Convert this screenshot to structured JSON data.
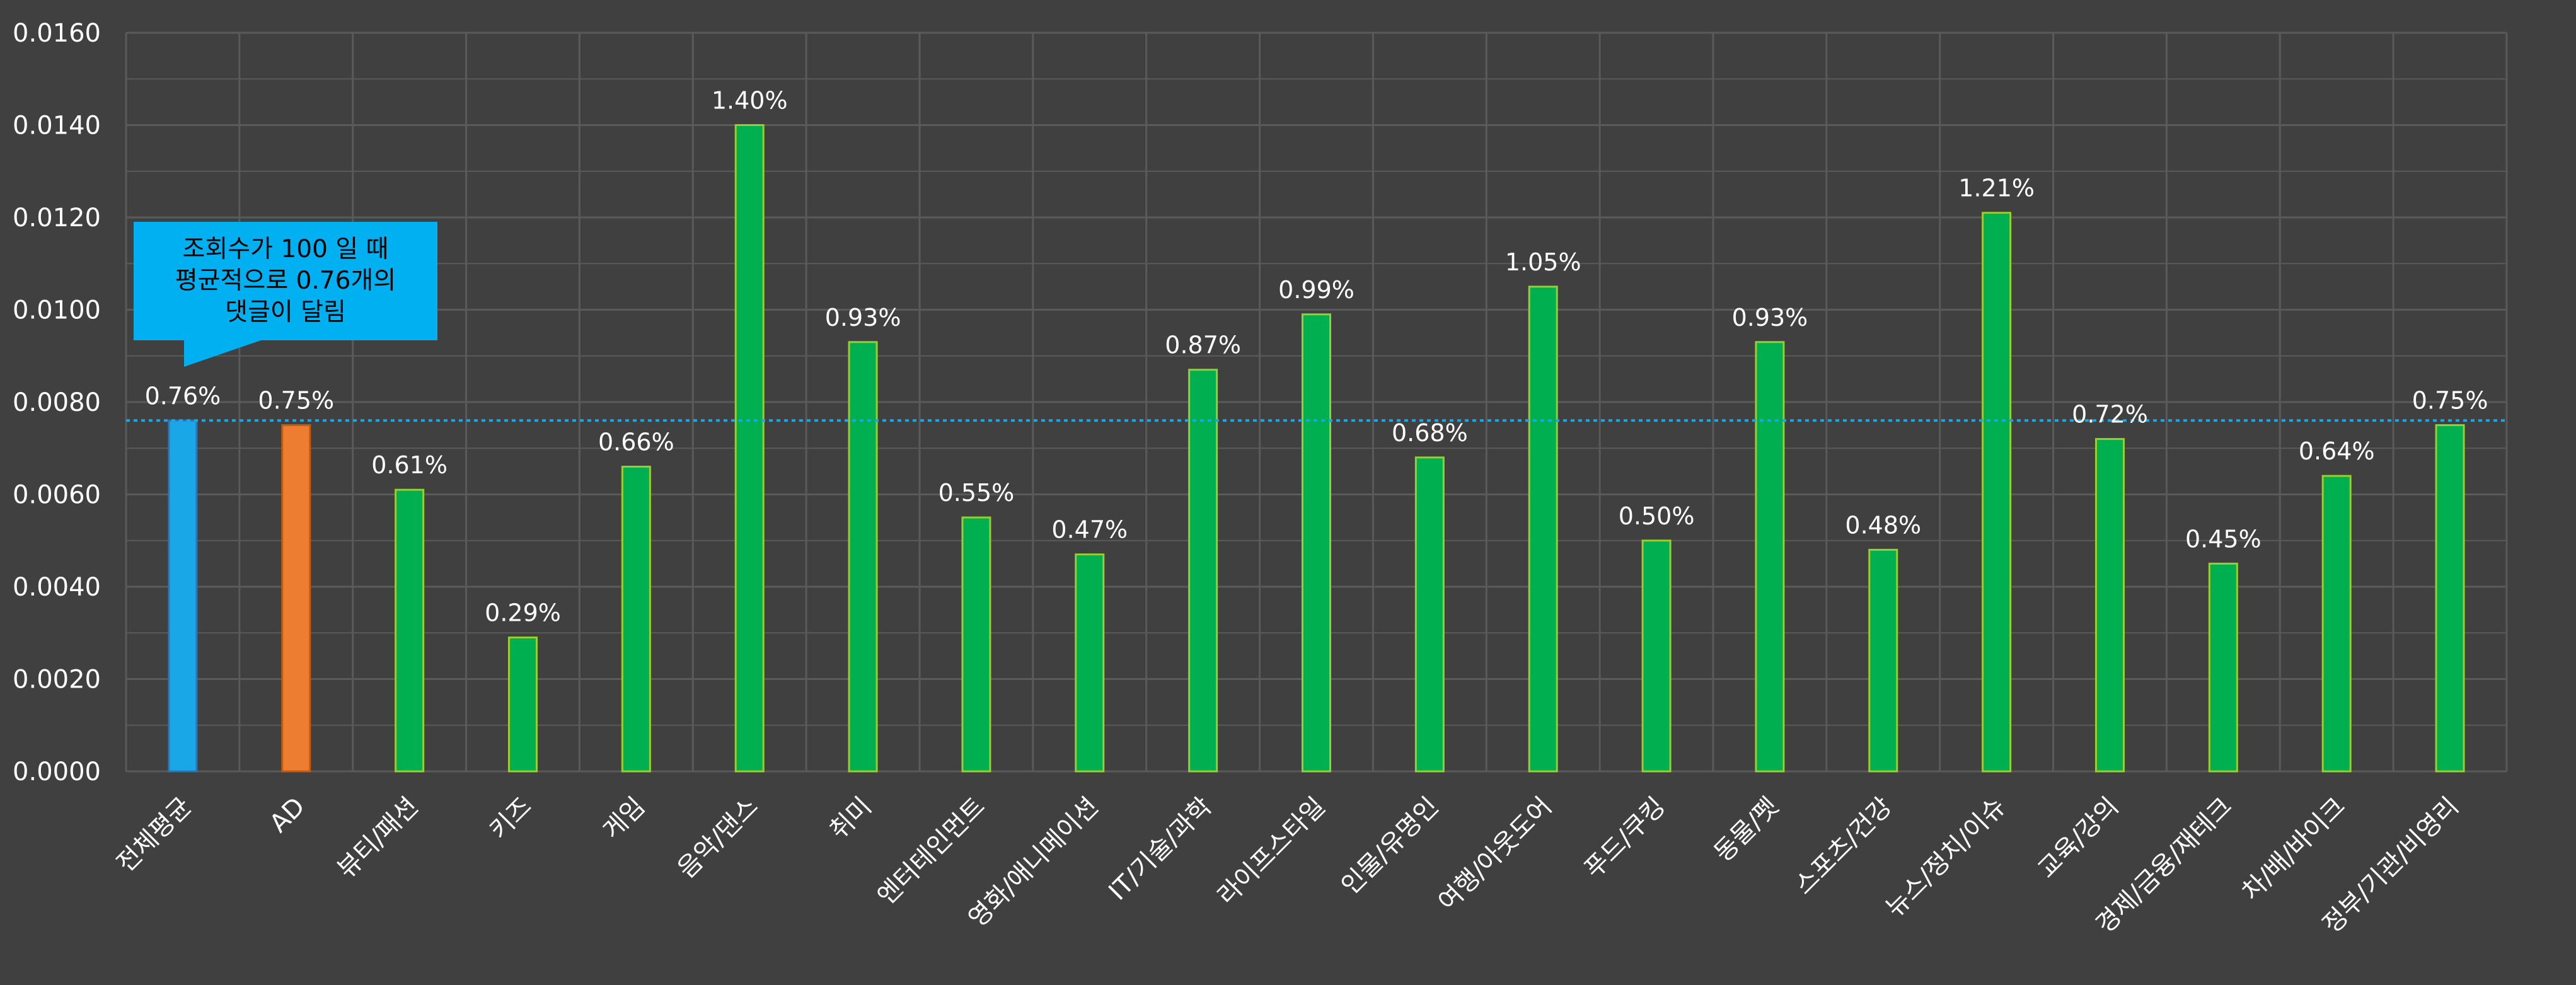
{
  "chart_data": {
    "type": "bar",
    "title": "",
    "xlabel": "",
    "ylabel": "",
    "ylim": [
      0,
      0.016
    ],
    "yticks": [
      "0.0000",
      "0.0020",
      "0.0040",
      "0.0060",
      "0.0080",
      "0.0100",
      "0.0120",
      "0.0140",
      "0.0160"
    ],
    "ytick_values": [
      0,
      0.002,
      0.004,
      0.006,
      0.008,
      0.01,
      0.012,
      0.014,
      0.016
    ],
    "grid": true,
    "legend": "none",
    "categories": [
      "전체평균",
      "AD",
      "뷰티/패션",
      "키즈",
      "게임",
      "음악/댄스",
      "취미",
      "엔터테인먼트",
      "영화/애니메이션",
      "IT/기술/과학",
      "라이프스타일",
      "인물/유명인",
      "여행/아웃도어",
      "푸드/쿠킹",
      "동물/펫",
      "스포츠/건강",
      "뉴스/정치/이슈",
      "교육/강의",
      "경제/금융/재테크",
      "차/배/바이크",
      "정부/기관/비영리"
    ],
    "values": [
      0.0076,
      0.0075,
      0.0061,
      0.0029,
      0.0066,
      0.014,
      0.0093,
      0.0055,
      0.0047,
      0.0087,
      0.0099,
      0.0068,
      0.0105,
      0.005,
      0.0093,
      0.0048,
      0.0121,
      0.0072,
      0.0045,
      0.0064,
      0.0075
    ],
    "data_labels": [
      "0.76%",
      "0.75%",
      "0.61%",
      "0.29%",
      "0.66%",
      "1.40%",
      "0.93%",
      "0.55%",
      "0.47%",
      "0.87%",
      "0.99%",
      "0.68%",
      "1.05%",
      "0.50%",
      "0.93%",
      "0.48%",
      "1.21%",
      "0.72%",
      "0.45%",
      "0.64%",
      "0.75%"
    ],
    "bar_colors": [
      "#1aa7e8",
      "#ed7d31",
      "#00b050",
      "#00b050",
      "#00b050",
      "#00b050",
      "#00b050",
      "#00b050",
      "#00b050",
      "#00b050",
      "#00b050",
      "#00b050",
      "#00b050",
      "#00b050",
      "#00b050",
      "#00b050",
      "#00b050",
      "#00b050",
      "#00b050",
      "#00b050",
      "#00b050"
    ],
    "reference_line": {
      "value": 0.0076,
      "color": "#1aa7e8",
      "style": "dotted"
    },
    "annotation": {
      "lines": [
        "조회수가 100 일 때",
        "평균적으로 0.76개의",
        "댓글이 달림"
      ],
      "fill": "#00b0f0"
    },
    "colors": {
      "background": "#404040",
      "grid": "#5a5a5a",
      "text": "#ffffff"
    }
  }
}
